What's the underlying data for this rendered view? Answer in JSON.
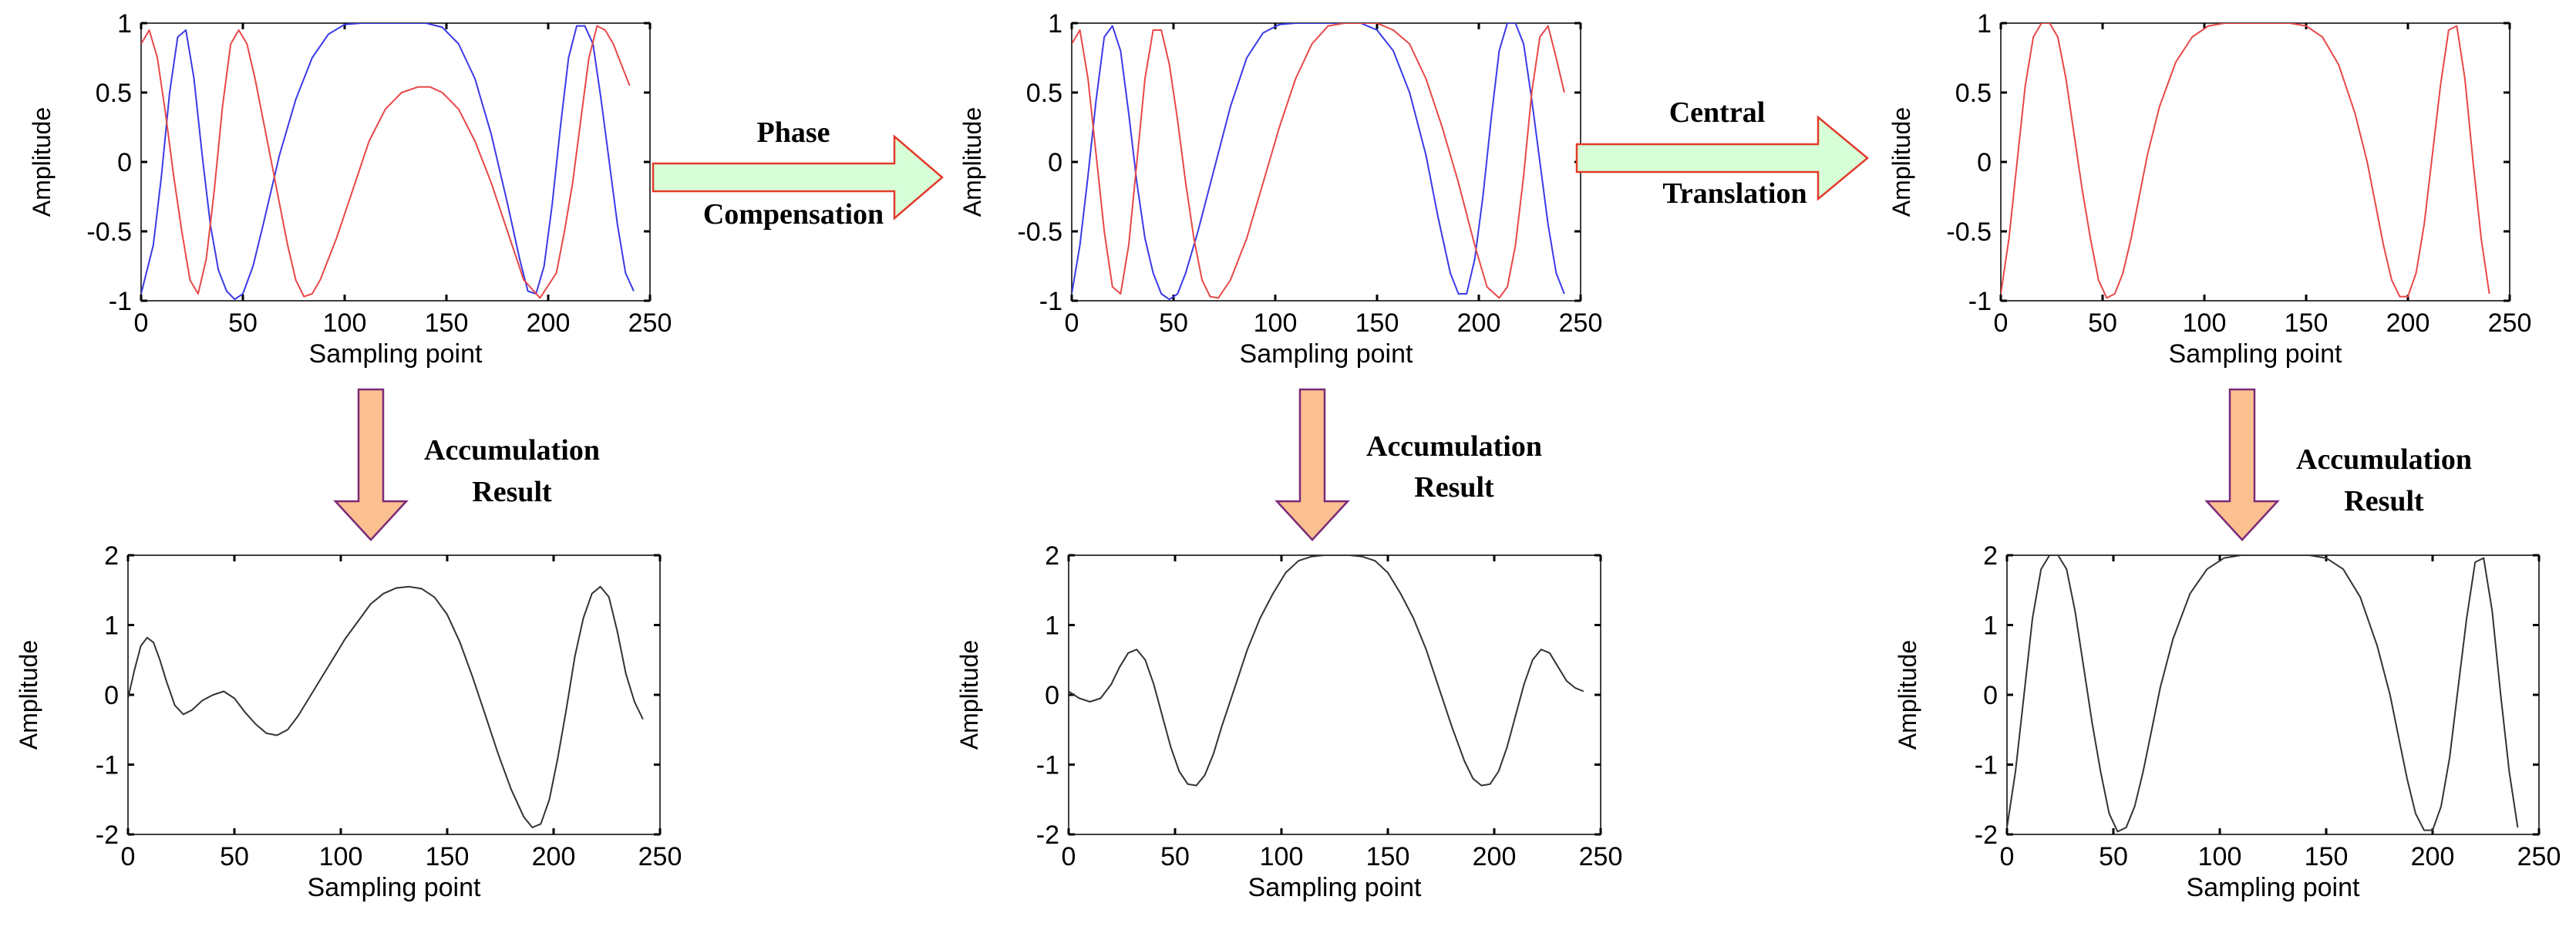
{
  "figure": {
    "annotations": {
      "phase_compensation": [
        "Phase",
        "Compensation"
      ],
      "central_translation": [
        "Central",
        "Translation"
      ],
      "accumulation": [
        "Accumulation",
        "Result"
      ]
    },
    "colors": {
      "blue": "#3a3ae8",
      "red": "#e84848",
      "black": "#333333",
      "green_arrow_fill": "#d7ffd7",
      "green_arrow_stroke": "#e23a2a",
      "orange_arrow_fill": "#fbc08f",
      "orange_arrow_stroke": "#7a2a7a"
    }
  },
  "chart_data": [
    {
      "id": "top-left",
      "type": "line",
      "title": "",
      "xlabel": "Sampling point",
      "ylabel": "Amplitude",
      "xlim": [
        0,
        250
      ],
      "ylim": [
        -1,
        1
      ],
      "xticks": [
        "0",
        "50",
        "100",
        "150",
        "200",
        "250"
      ],
      "yticks": [
        "-1",
        "-0.5",
        "0",
        "0.5",
        "1"
      ],
      "series": [
        {
          "name": "blue",
          "color": "#3a3ae8",
          "x": [
            0,
            6,
            10,
            14,
            18,
            22,
            26,
            30,
            34,
            38,
            42,
            46,
            50,
            55,
            60,
            68,
            76,
            84,
            92,
            100,
            108,
            116,
            124,
            132,
            140,
            148,
            156,
            164,
            172,
            180,
            186,
            190,
            194,
            198,
            202,
            206,
            210,
            214,
            218,
            222,
            226,
            230,
            234,
            238,
            242
          ],
          "y": [
            -0.95,
            -0.6,
            -0.1,
            0.5,
            0.9,
            0.95,
            0.6,
            0.05,
            -0.45,
            -0.78,
            -0.93,
            -0.99,
            -0.95,
            -0.75,
            -0.45,
            0.05,
            0.45,
            0.75,
            0.92,
            0.99,
            1,
            1,
            1,
            1,
            1,
            0.97,
            0.85,
            0.6,
            0.2,
            -0.3,
            -0.7,
            -0.93,
            -0.95,
            -0.75,
            -0.3,
            0.25,
            0.75,
            0.98,
            0.98,
            0.85,
            0.45,
            0.0,
            -0.45,
            -0.8,
            -0.93
          ]
        },
        {
          "name": "red",
          "color": "#e84848",
          "x": [
            0,
            4,
            8,
            12,
            16,
            20,
            24,
            28,
            32,
            36,
            40,
            44,
            48,
            52,
            56,
            60,
            64,
            68,
            72,
            76,
            80,
            84,
            88,
            96,
            104,
            112,
            120,
            128,
            136,
            142,
            148,
            156,
            164,
            172,
            180,
            188,
            196,
            204,
            208,
            212,
            216,
            220,
            224,
            228,
            232,
            236,
            240
          ],
          "y": [
            0.85,
            0.95,
            0.75,
            0.35,
            -0.1,
            -0.5,
            -0.85,
            -0.95,
            -0.7,
            -0.2,
            0.4,
            0.85,
            0.95,
            0.85,
            0.6,
            0.3,
            0.0,
            -0.3,
            -0.6,
            -0.85,
            -0.97,
            -0.95,
            -0.85,
            -0.55,
            -0.2,
            0.15,
            0.38,
            0.5,
            0.54,
            0.54,
            0.5,
            0.38,
            0.15,
            -0.15,
            -0.5,
            -0.85,
            -0.98,
            -0.8,
            -0.5,
            -0.15,
            0.3,
            0.75,
            0.98,
            0.95,
            0.85,
            0.7,
            0.55
          ]
        }
      ]
    },
    {
      "id": "top-middle",
      "type": "line",
      "title": "",
      "xlabel": "Sampling point",
      "ylabel": "Amplitude",
      "xlim": [
        0,
        250
      ],
      "ylim": [
        -1,
        1
      ],
      "xticks": [
        "0",
        "50",
        "100",
        "150",
        "200",
        "250"
      ],
      "yticks": [
        "-1",
        "-0.5",
        "0",
        "0.5",
        "1"
      ],
      "series": [
        {
          "name": "blue",
          "color": "#3a3ae8",
          "x": [
            0,
            4,
            8,
            12,
            16,
            20,
            24,
            28,
            32,
            36,
            40,
            44,
            48,
            52,
            56,
            62,
            70,
            78,
            86,
            94,
            102,
            110,
            118,
            126,
            134,
            142,
            150,
            158,
            166,
            174,
            180,
            186,
            190,
            194,
            198,
            202,
            206,
            210,
            214,
            218,
            222,
            226,
            230,
            234,
            238,
            242
          ],
          "y": [
            -0.95,
            -0.6,
            -0.1,
            0.45,
            0.9,
            0.98,
            0.8,
            0.35,
            -0.15,
            -0.55,
            -0.8,
            -0.95,
            -0.99,
            -0.95,
            -0.8,
            -0.5,
            -0.05,
            0.4,
            0.75,
            0.93,
            0.99,
            1,
            1,
            1,
            1,
            1,
            0.95,
            0.8,
            0.5,
            0.05,
            -0.4,
            -0.8,
            -0.95,
            -0.95,
            -0.7,
            -0.25,
            0.3,
            0.8,
            1,
            1,
            0.85,
            0.45,
            0.0,
            -0.45,
            -0.8,
            -0.95
          ]
        },
        {
          "name": "red",
          "color": "#e84848",
          "x": [
            0,
            4,
            8,
            12,
            16,
            20,
            24,
            28,
            32,
            36,
            40,
            44,
            48,
            52,
            56,
            60,
            64,
            68,
            72,
            78,
            86,
            94,
            102,
            110,
            118,
            126,
            134,
            142,
            150,
            158,
            166,
            174,
            182,
            190,
            198,
            204,
            210,
            214,
            218,
            222,
            226,
            230,
            234,
            238,
            242
          ],
          "y": [
            0.85,
            0.95,
            0.6,
            0.05,
            -0.5,
            -0.9,
            -0.95,
            -0.6,
            0.0,
            0.6,
            0.95,
            0.95,
            0.7,
            0.3,
            -0.15,
            -0.55,
            -0.85,
            -0.97,
            -0.98,
            -0.85,
            -0.55,
            -0.15,
            0.25,
            0.6,
            0.85,
            0.98,
            1,
            1,
            1,
            0.95,
            0.85,
            0.6,
            0.25,
            -0.15,
            -0.6,
            -0.9,
            -0.98,
            -0.9,
            -0.6,
            -0.1,
            0.5,
            0.9,
            0.98,
            0.75,
            0.5
          ]
        }
      ]
    },
    {
      "id": "top-right",
      "type": "line",
      "title": "",
      "xlabel": "Sampling point",
      "ylabel": "Amplitude",
      "xlim": [
        0,
        250
      ],
      "ylim": [
        -1,
        1
      ],
      "xticks": [
        "0",
        "50",
        "100",
        "150",
        "200",
        "250"
      ],
      "yticks": [
        "-1",
        "-0.5",
        "0",
        "0.5",
        "1"
      ],
      "series": [
        {
          "name": "red",
          "color": "#e84848",
          "x": [
            0,
            4,
            8,
            12,
            16,
            20,
            24,
            28,
            32,
            36,
            40,
            44,
            48,
            52,
            56,
            60,
            64,
            68,
            72,
            78,
            86,
            94,
            102,
            110,
            118,
            126,
            134,
            142,
            150,
            158,
            166,
            174,
            180,
            184,
            188,
            192,
            196,
            200,
            204,
            208,
            212,
            216,
            220,
            224,
            228,
            232,
            236,
            240
          ],
          "y": [
            -0.95,
            -0.55,
            0.0,
            0.55,
            0.9,
            1,
            1,
            0.9,
            0.6,
            0.2,
            -0.2,
            -0.55,
            -0.85,
            -0.98,
            -0.95,
            -0.8,
            -0.55,
            -0.25,
            0.05,
            0.4,
            0.72,
            0.9,
            0.98,
            1,
            1,
            1,
            1,
            1,
            0.98,
            0.9,
            0.7,
            0.35,
            0.0,
            -0.3,
            -0.6,
            -0.85,
            -0.97,
            -0.97,
            -0.8,
            -0.45,
            0.05,
            0.55,
            0.95,
            0.98,
            0.6,
            0.0,
            -0.55,
            -0.95
          ]
        }
      ]
    },
    {
      "id": "bottom-left",
      "type": "line",
      "title": "",
      "xlabel": "Sampling point",
      "ylabel": "Amplitude",
      "xlim": [
        0,
        250
      ],
      "ylim": [
        -2,
        2
      ],
      "xticks": [
        "0",
        "50",
        "100",
        "150",
        "200",
        "250"
      ],
      "yticks": [
        "-2",
        "-1",
        "0",
        "1",
        "2"
      ],
      "series": [
        {
          "name": "accumulation",
          "color": "#333333",
          "x": [
            0,
            3,
            6,
            9,
            12,
            15,
            18,
            22,
            26,
            30,
            35,
            40,
            45,
            50,
            55,
            60,
            65,
            70,
            75,
            80,
            85,
            90,
            96,
            102,
            108,
            114,
            120,
            126,
            132,
            138,
            144,
            150,
            156,
            162,
            168,
            174,
            180,
            186,
            190,
            194,
            198,
            202,
            206,
            210,
            214,
            218,
            222,
            226,
            230,
            234,
            238,
            242
          ],
          "y": [
            -0.05,
            0.35,
            0.7,
            0.82,
            0.75,
            0.5,
            0.2,
            -0.15,
            -0.28,
            -0.22,
            -0.08,
            0.0,
            0.05,
            -0.05,
            -0.25,
            -0.42,
            -0.55,
            -0.58,
            -0.5,
            -0.3,
            -0.05,
            0.2,
            0.5,
            0.8,
            1.05,
            1.3,
            1.45,
            1.53,
            1.55,
            1.52,
            1.4,
            1.15,
            0.75,
            0.25,
            -0.3,
            -0.85,
            -1.35,
            -1.75,
            -1.9,
            -1.85,
            -1.5,
            -0.9,
            -0.2,
            0.55,
            1.1,
            1.45,
            1.55,
            1.4,
            0.9,
            0.3,
            -0.1,
            -0.35
          ]
        }
      ]
    },
    {
      "id": "bottom-middle",
      "type": "line",
      "title": "",
      "xlabel": "Sampling point",
      "ylabel": "Amplitude",
      "xlim": [
        0,
        250
      ],
      "ylim": [
        -2,
        2
      ],
      "xticks": [
        "0",
        "50",
        "100",
        "150",
        "200",
        "250"
      ],
      "yticks": [
        "-2",
        "-1",
        "0",
        "1",
        "2"
      ],
      "series": [
        {
          "name": "accumulation",
          "color": "#333333",
          "x": [
            0,
            5,
            10,
            15,
            20,
            24,
            28,
            32,
            36,
            40,
            44,
            48,
            52,
            56,
            60,
            64,
            68,
            72,
            78,
            84,
            90,
            96,
            102,
            108,
            114,
            120,
            126,
            132,
            138,
            144,
            150,
            156,
            162,
            168,
            174,
            180,
            186,
            190,
            194,
            198,
            202,
            206,
            210,
            214,
            218,
            222,
            226,
            230,
            234,
            238,
            242
          ],
          "y": [
            0.05,
            -0.05,
            -0.1,
            -0.05,
            0.15,
            0.4,
            0.6,
            0.65,
            0.5,
            0.15,
            -0.3,
            -0.75,
            -1.1,
            -1.28,
            -1.3,
            -1.15,
            -0.85,
            -0.45,
            0.1,
            0.65,
            1.1,
            1.45,
            1.75,
            1.92,
            1.98,
            2,
            2,
            2,
            1.98,
            1.92,
            1.75,
            1.45,
            1.1,
            0.65,
            0.1,
            -0.45,
            -0.95,
            -1.2,
            -1.3,
            -1.28,
            -1.1,
            -0.75,
            -0.3,
            0.15,
            0.5,
            0.65,
            0.6,
            0.4,
            0.2,
            0.1,
            0.05
          ]
        }
      ]
    },
    {
      "id": "bottom-right",
      "type": "line",
      "title": "",
      "xlabel": "Sampling point",
      "ylabel": "Amplitude",
      "xlim": [
        0,
        250
      ],
      "ylim": [
        -2,
        2
      ],
      "xticks": [
        "0",
        "50",
        "100",
        "150",
        "200",
        "250"
      ],
      "yticks": [
        "-2",
        "-1",
        "0",
        "1",
        "2"
      ],
      "series": [
        {
          "name": "accumulation",
          "color": "#333333",
          "x": [
            0,
            4,
            8,
            12,
            16,
            20,
            24,
            28,
            32,
            36,
            40,
            44,
            48,
            52,
            56,
            60,
            64,
            68,
            72,
            78,
            86,
            94,
            102,
            110,
            118,
            126,
            134,
            142,
            150,
            158,
            166,
            174,
            180,
            184,
            188,
            192,
            196,
            200,
            204,
            208,
            212,
            216,
            220,
            224,
            228,
            232,
            236,
            240
          ],
          "y": [
            -1.9,
            -1.1,
            0.0,
            1.1,
            1.8,
            2,
            2,
            1.8,
            1.2,
            0.4,
            -0.4,
            -1.1,
            -1.7,
            -1.96,
            -1.9,
            -1.6,
            -1.1,
            -0.5,
            0.1,
            0.8,
            1.45,
            1.8,
            1.96,
            2,
            2,
            2,
            2,
            2,
            1.96,
            1.8,
            1.4,
            0.7,
            0.0,
            -0.6,
            -1.2,
            -1.7,
            -1.94,
            -1.94,
            -1.6,
            -0.9,
            0.1,
            1.1,
            1.9,
            1.96,
            1.2,
            0.0,
            -1.1,
            -1.9
          ]
        }
      ]
    }
  ]
}
